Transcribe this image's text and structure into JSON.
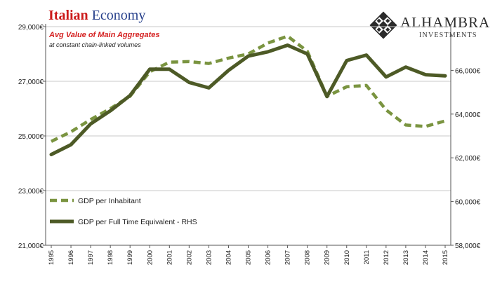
{
  "header": {
    "title_part1": "Italian",
    "title_part2": "Economy",
    "subtitle": "Avg Value of Main Aggregates",
    "subtitle2": "at constant chain-linked volumes"
  },
  "logo": {
    "name": "ALHAMBRA",
    "tagline": "INVESTMENTS",
    "icon": "diamond-lattice-icon"
  },
  "colors": {
    "series_dashed": "#7a9440",
    "series_solid": "#4d5a26",
    "grid": "#c8c8c8",
    "axis": "#555555"
  },
  "chart_data": {
    "type": "line",
    "x": [
      1995,
      1996,
      1997,
      1998,
      1999,
      2000,
      2001,
      2002,
      2003,
      2004,
      2005,
      2006,
      2007,
      2008,
      2009,
      2010,
      2011,
      2012,
      2013,
      2014,
      2015
    ],
    "x_tick_labels": [
      "1995",
      "1996",
      "1997",
      "1998",
      "1999",
      "2000",
      "2001",
      "2002",
      "2003",
      "2004",
      "2005",
      "2006",
      "2007",
      "2008",
      "2009",
      "2010",
      "2011",
      "2012",
      "2013",
      "2014",
      "2015"
    ],
    "left_axis": {
      "ylim": [
        21000,
        29000
      ],
      "ticks": [
        21000,
        23000,
        25000,
        27000,
        29000
      ],
      "tick_labels": [
        "21,000€",
        "23,000€",
        "25,000€",
        "27,000€",
        "29,000€"
      ]
    },
    "right_axis": {
      "ylim": [
        58000,
        68000
      ],
      "ticks": [
        58000,
        60000,
        62000,
        64000,
        66000
      ],
      "tick_labels": [
        "58,000€",
        "60,000€",
        "62,000€",
        "64,000€",
        "66,000€"
      ]
    },
    "grid": true,
    "legend": "bottom-left",
    "series": [
      {
        "name": "GDP per Inhabitant",
        "axis": "left",
        "style": "dashed",
        "values": [
          24800,
          25150,
          25600,
          26000,
          26450,
          27350,
          27700,
          27720,
          27650,
          27850,
          28000,
          28400,
          28650,
          28100,
          26450,
          26800,
          26850,
          25950,
          25400,
          25350,
          25550
        ]
      },
      {
        "name": "GDP per Full Time Equivalent - RHS",
        "axis": "right",
        "style": "solid",
        "values": [
          62150,
          62600,
          63550,
          64150,
          64850,
          66050,
          66050,
          65450,
          65200,
          66000,
          66650,
          66850,
          67150,
          66750,
          64800,
          66450,
          66700,
          65700,
          66150,
          65800,
          65750
        ]
      }
    ]
  }
}
